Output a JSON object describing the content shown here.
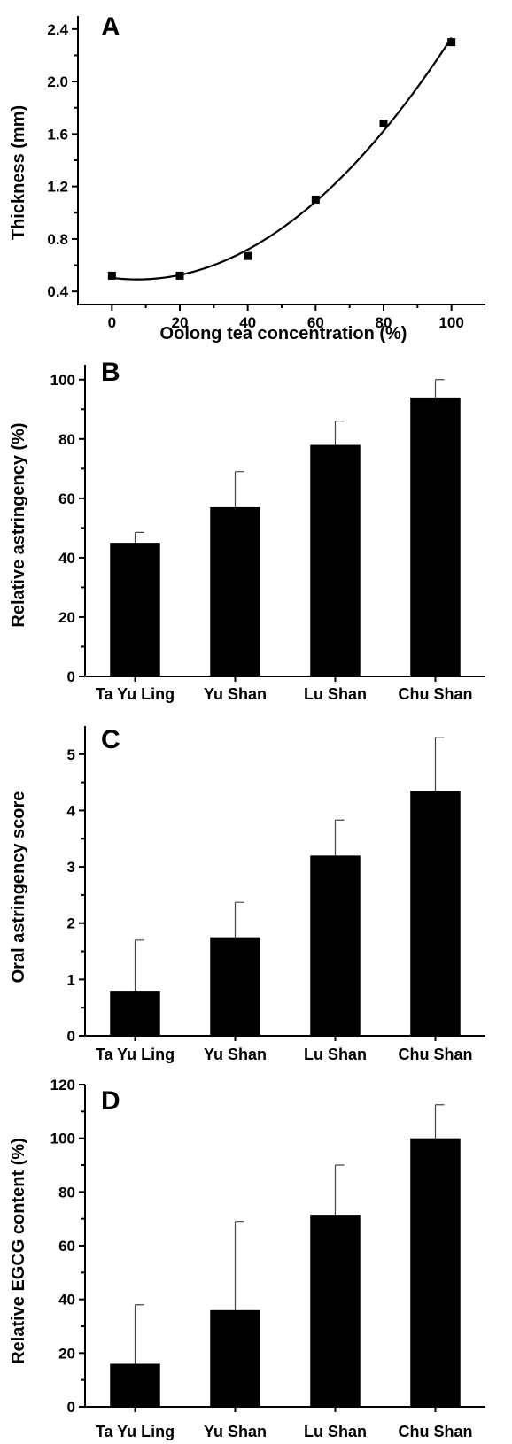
{
  "chart_data": [
    {
      "panel": "A",
      "type": "scatter",
      "xlabel": "Oolong tea concentration (%)",
      "ylabel": "Thickness (mm)",
      "x": [
        0,
        20,
        40,
        60,
        80,
        100
      ],
      "y": [
        0.52,
        0.52,
        0.67,
        1.1,
        1.68,
        2.3
      ],
      "fit": "quadratic",
      "xlim": [
        -10,
        110
      ],
      "ylim": [
        0.3,
        2.5
      ],
      "xticks": [
        "0",
        "20",
        "40",
        "60",
        "80",
        "100"
      ],
      "yticks": [
        "0.4",
        "0.8",
        "1.2",
        "1.6",
        "2.0",
        "2.4"
      ]
    },
    {
      "panel": "B",
      "type": "bar",
      "categories": [
        "Ta Yu Ling",
        "Yu Shan",
        "Lu Shan",
        "Chu Shan"
      ],
      "values": [
        45,
        57,
        78,
        94
      ],
      "errors": [
        3.5,
        12,
        8,
        6
      ],
      "ylabel": "Relative astringency (%)",
      "ylim": [
        0,
        105
      ],
      "yticks": [
        "0",
        "20",
        "40",
        "60",
        "80",
        "100"
      ]
    },
    {
      "panel": "C",
      "type": "bar",
      "categories": [
        "Ta Yu Ling",
        "Yu Shan",
        "Lu Shan",
        "Chu Shan"
      ],
      "values": [
        0.8,
        1.75,
        3.2,
        4.35
      ],
      "errors": [
        0.9,
        0.62,
        0.63,
        0.95
      ],
      "ylabel": "Oral astringency score",
      "ylim": [
        0,
        5.5
      ],
      "yticks": [
        "0",
        "1",
        "2",
        "3",
        "4",
        "5"
      ]
    },
    {
      "panel": "D",
      "type": "bar",
      "categories": [
        "Ta Yu Ling",
        "Yu Shan",
        "Lu Shan",
        "Chu Shan"
      ],
      "values": [
        16,
        36,
        71.5,
        100
      ],
      "errors": [
        22,
        33,
        18.5,
        12.5
      ],
      "ylabel": "Relative EGCG content (%)",
      "ylim": [
        0,
        120
      ],
      "yticks": [
        "0",
        "20",
        "40",
        "60",
        "80",
        "100",
        "120"
      ]
    }
  ]
}
